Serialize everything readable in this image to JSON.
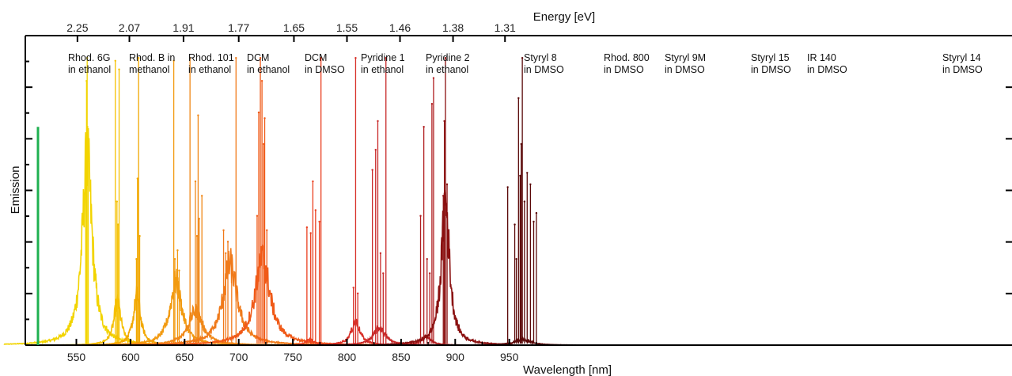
{
  "chart_data": {
    "type": "line",
    "title": "",
    "xlabel": "Wavelength [nm]",
    "ylabel": "Emission",
    "x2label": "Energy [eV]",
    "xlim": [
      520,
      980
    ],
    "ylim": [
      0,
      1.05
    ],
    "grid": false,
    "legend": "none",
    "x_ticks": [
      550,
      600,
      650,
      700,
      750,
      800,
      850,
      900,
      950
    ],
    "x2_ticks": [
      "2.25",
      "2.07",
      "1.91",
      "1.77",
      "1.65",
      "1.55",
      "1.46",
      "1.38",
      "1.31"
    ],
    "x2_tick_wavelengths": [
      551,
      599,
      649,
      700,
      751,
      800,
      849,
      898,
      946
    ],
    "indicator": {
      "color": "#1fb050",
      "x": 525,
      "y_top": 0.76
    },
    "series": [
      {
        "name": "Rhod. 6G in ethanol",
        "label_lines": [
          "Rhod. 6G",
          "in ethanol"
        ],
        "color": "#f2d400",
        "center": 560,
        "width": 5.5,
        "base_peak": 0.65,
        "lines": [
          [
            560,
            1.0
          ],
          [
            559.4,
            0.92
          ],
          [
            561,
            0.7
          ],
          [
            558.6,
            0.68
          ]
        ]
      },
      {
        "name": "Rhod. B in methanol",
        "label_lines": [
          "Rhod. B in",
          "methanol"
        ],
        "color": "#f5c000",
        "center": 588,
        "width": 4.0,
        "base_peak": 0.15,
        "lines": [
          [
            586,
            0.99
          ],
          [
            587.5,
            0.5
          ],
          [
            589.5,
            0.96
          ],
          [
            588.5,
            0.42
          ]
        ]
      },
      {
        "name": "Rhod. 101 in ethanol",
        "label_lines": [
          "Rhod. 101",
          "in ethanol"
        ],
        "color": "#f2a800",
        "center": 606,
        "width": 4.0,
        "base_peak": 0.17,
        "lines": [
          [
            607.5,
            1.0
          ],
          [
            606.5,
            0.58
          ],
          [
            608.5,
            0.38
          ],
          [
            605.5,
            0.3
          ]
        ]
      },
      {
        "name": "DCM in ethanol",
        "label_lines": [
          "DCM",
          "in ethanol"
        ],
        "color": "#f29a10",
        "center": 642,
        "width": 6.5,
        "base_peak": 0.22,
        "lines": [
          [
            640,
            0.99
          ],
          [
            643.5,
            0.33
          ],
          [
            641,
            0.3
          ],
          [
            645,
            0.26
          ]
        ]
      },
      {
        "name": "DCM in DMSO",
        "label_lines": [
          "DCM",
          "in DMSO"
        ],
        "color": "#f08818",
        "center": 660,
        "width": 8.0,
        "base_peak": 0.12,
        "lines": [
          [
            655,
            1.0
          ],
          [
            662.5,
            0.8
          ],
          [
            660,
            0.57
          ],
          [
            666,
            0.52
          ],
          [
            663.5,
            0.44
          ],
          [
            661.5,
            0.38
          ]
        ]
      },
      {
        "name": "Pyridine 1 in ethanol",
        "label_lines": [
          "Pyridine 1",
          "in ethanol"
        ],
        "color": "#f07a1a",
        "center": 692,
        "width": 8.0,
        "base_peak": 0.28,
        "lines": [
          [
            697.5,
            1.0
          ],
          [
            686,
            0.4
          ],
          [
            690,
            0.36
          ],
          [
            693.5,
            0.28
          ],
          [
            688,
            0.32
          ]
        ]
      },
      {
        "name": "Pyridine 2 in ethanol",
        "label_lines": [
          "Pyridine 2",
          "in ethanol"
        ],
        "color": "#f05a18",
        "center": 722,
        "width": 8.5,
        "base_peak": 0.3,
        "lines": [
          [
            720,
            1.0
          ],
          [
            721.5,
            0.92
          ],
          [
            718.5,
            0.81
          ],
          [
            724,
            0.79
          ],
          [
            723,
            0.7
          ],
          [
            717,
            0.45
          ],
          [
            726,
            0.4
          ]
        ]
      },
      {
        "name": "Styryl 8 in DMSO",
        "label_lines": [
          "Styryl 8",
          "in DMSO"
        ],
        "color": "#ea4020",
        "center": 766,
        "width": 4.5,
        "base_peak": 0.02,
        "lines": [
          [
            776,
            1.0
          ],
          [
            768.5,
            0.57
          ],
          [
            771,
            0.47
          ],
          [
            774.5,
            0.43
          ],
          [
            763,
            0.41
          ],
          [
            766.5,
            0.39
          ]
        ]
      },
      {
        "name": "Rhod. 800 in DMSO",
        "label_lines": [
          "Rhod. 800",
          "in DMSO"
        ],
        "color": "#d83028",
        "center": 808,
        "width": 5.0,
        "base_peak": 0.08,
        "lines": [
          [
            808,
            1.0
          ],
          [
            806,
            0.2
          ],
          [
            810,
            0.18
          ]
        ]
      },
      {
        "name": "Styryl 9M in DMSO",
        "label_lines": [
          "Styryl 9M",
          "in DMSO"
        ],
        "color": "#c82828",
        "center": 830,
        "width": 6.5,
        "base_peak": 0.06,
        "lines": [
          [
            836,
            1.0
          ],
          [
            828.5,
            0.78
          ],
          [
            826.5,
            0.68
          ],
          [
            823.5,
            0.61
          ],
          [
            831,
            0.32
          ],
          [
            833.5,
            0.25
          ]
        ]
      },
      {
        "name": "Styryl 15 in DMSO",
        "label_lines": [
          "Styryl 15",
          "in DMSO"
        ],
        "color": "#b01e20",
        "center": 873,
        "width": 5.5,
        "base_peak": 0.03,
        "lines": [
          [
            880,
            0.93
          ],
          [
            871,
            0.76
          ],
          [
            878.5,
            0.84
          ],
          [
            868,
            0.45
          ],
          [
            874,
            0.3
          ],
          [
            876.5,
            0.25
          ]
        ]
      },
      {
        "name": "IR 140 in DMSO",
        "label_lines": [
          "IR 140",
          "in DMSO"
        ],
        "color": "#8a1010",
        "center": 891,
        "width": 4.5,
        "base_peak": 0.5,
        "lines": [
          [
            891,
            1.0
          ],
          [
            890,
            0.78
          ],
          [
            892.5,
            0.56
          ],
          [
            889,
            0.52
          ]
        ]
      },
      {
        "name": "Styryl 14 in DMSO",
        "label_lines": [
          "Styryl 14",
          "in DMSO"
        ],
        "color": "#5a0808",
        "center": 962,
        "width": 9.0,
        "base_peak": 0.02,
        "lines": [
          [
            962,
            1.0
          ],
          [
            958.5,
            0.86
          ],
          [
            961,
            0.7
          ],
          [
            966.5,
            0.6
          ],
          [
            960,
            0.59
          ],
          [
            969.5,
            0.56
          ],
          [
            964,
            0.5
          ],
          [
            972.5,
            0.43
          ],
          [
            975,
            0.46
          ],
          [
            955,
            0.42
          ],
          [
            956.5,
            0.3
          ],
          [
            948.5,
            0.55
          ]
        ]
      }
    ]
  }
}
